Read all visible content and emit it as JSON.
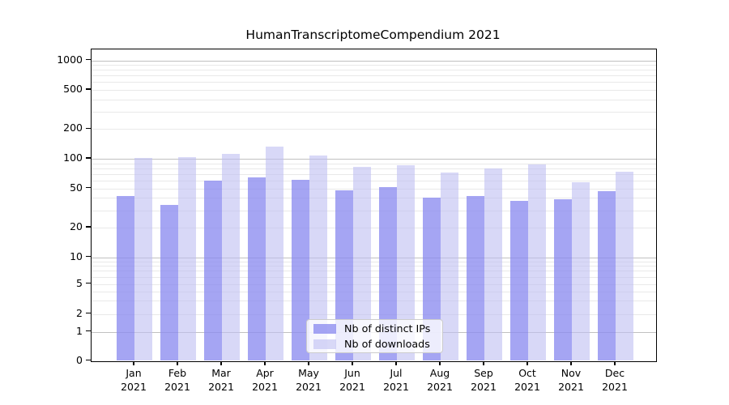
{
  "title": "HumanTranscriptomeCompendium 2021",
  "legend": {
    "items": [
      {
        "label": "Nb of distinct IPs",
        "series_key": "ips"
      },
      {
        "label": "Nb of downloads",
        "series_key": "downloads"
      }
    ]
  },
  "colors": {
    "ips_bar": "rgba(140,140,240,0.78)",
    "downloads_bar": "rgba(190,190,242,0.6)",
    "grid_major": "#c0c0c0",
    "grid_minor": "#e9e9e9",
    "axis": "#000000",
    "legend_border": "#cccccc"
  },
  "axes": {
    "y_tick_values": [
      0,
      1,
      2,
      5,
      10,
      20,
      50,
      100,
      200,
      500,
      1000
    ],
    "y_tick_labels": [
      "0",
      "1",
      "2",
      "5",
      "10",
      "20",
      "50",
      "100",
      "200",
      "500",
      "1000"
    ],
    "y_major_grid_values": [
      1,
      10,
      100,
      1000
    ],
    "x_months": [
      "Jan",
      "Feb",
      "Mar",
      "Apr",
      "May",
      "Jun",
      "Jul",
      "Aug",
      "Sep",
      "Oct",
      "Nov",
      "Dec"
    ],
    "x_year": "2021"
  },
  "chart_data": {
    "type": "bar",
    "title": "HumanTranscriptomeCompendium 2021",
    "categories": [
      "Jan 2021",
      "Feb 2021",
      "Mar 2021",
      "Apr 2021",
      "May 2021",
      "Jun 2021",
      "Jul 2021",
      "Aug 2021",
      "Sep 2021",
      "Oct 2021",
      "Nov 2021",
      "Dec 2021"
    ],
    "series": [
      {
        "name": "Nb of distinct IPs",
        "values": [
          42,
          34,
          60,
          65,
          61,
          48,
          52,
          40,
          42,
          37,
          39,
          47
        ]
      },
      {
        "name": "Nb of downloads",
        "values": [
          102,
          103,
          112,
          133,
          107,
          82,
          86,
          72,
          79,
          88,
          58,
          74
        ]
      }
    ],
    "xlabel": "",
    "ylabel": "",
    "yscale": "symlog-like (log above 1, compressed linear below)",
    "yticks": [
      0,
      1,
      2,
      5,
      10,
      20,
      50,
      100,
      200,
      500,
      1000
    ],
    "ylim": [
      0,
      1400
    ],
    "grid": true,
    "legend_position": "lower center"
  }
}
